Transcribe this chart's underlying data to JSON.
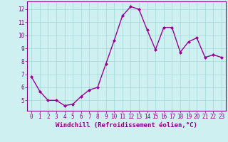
{
  "x": [
    0,
    1,
    2,
    3,
    4,
    5,
    6,
    7,
    8,
    9,
    10,
    11,
    12,
    13,
    14,
    15,
    16,
    17,
    18,
    19,
    20,
    21,
    22,
    23
  ],
  "y": [
    6.8,
    5.7,
    5.0,
    5.0,
    4.6,
    4.7,
    5.3,
    5.8,
    6.0,
    7.8,
    9.6,
    11.5,
    12.2,
    12.0,
    10.4,
    8.9,
    10.6,
    10.6,
    8.7,
    9.5,
    9.8,
    8.3,
    8.5,
    8.3
  ],
  "line_color": "#990099",
  "marker": "D",
  "marker_size": 2.0,
  "background_color": "#cff0f0",
  "grid_color": "#a0d8d8",
  "xlabel": "Windchill (Refroidissement éolien,°C)",
  "xlabel_fontsize": 6.5,
  "ylim": [
    4.2,
    12.6
  ],
  "xlim": [
    -0.5,
    23.5
  ],
  "yticks": [
    5,
    6,
    7,
    8,
    9,
    10,
    11,
    12
  ],
  "xticks": [
    0,
    1,
    2,
    3,
    4,
    5,
    6,
    7,
    8,
    9,
    10,
    11,
    12,
    13,
    14,
    15,
    16,
    17,
    18,
    19,
    20,
    21,
    22,
    23
  ],
  "tick_color": "#880088",
  "tick_fontsize": 5.5,
  "spine_color": "#880088",
  "line_width": 1.0
}
